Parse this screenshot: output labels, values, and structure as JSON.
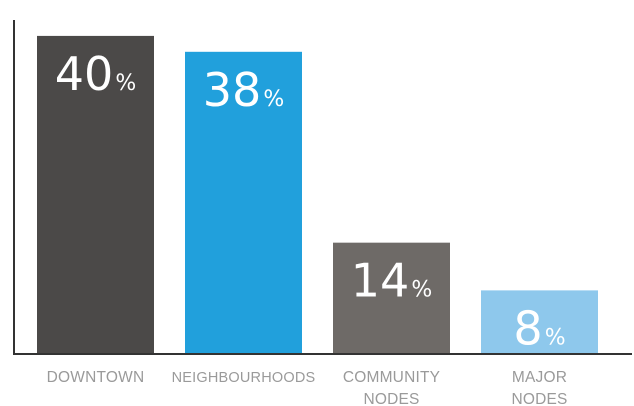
{
  "chart_data": {
    "type": "bar",
    "categories": [
      [
        "DOWNTOWN"
      ],
      [
        "NEIGHBOURHOODS"
      ],
      [
        "COMMUNITY",
        "NODES"
      ],
      [
        "MAJOR",
        "NODES"
      ]
    ],
    "values": [
      40,
      38,
      14,
      8
    ],
    "value_labels": [
      "40",
      "38",
      "14",
      "8"
    ],
    "unit_suffix": "%",
    "ylim": [
      0,
      42
    ],
    "bar_colors": [
      "#4b4948",
      "#21a0dc",
      "#6e6a67",
      "#8ec8ec"
    ],
    "value_text_color": "#ffffff",
    "axis_color": "#333333",
    "label_color": "#9a9a9a",
    "grid": false
  }
}
